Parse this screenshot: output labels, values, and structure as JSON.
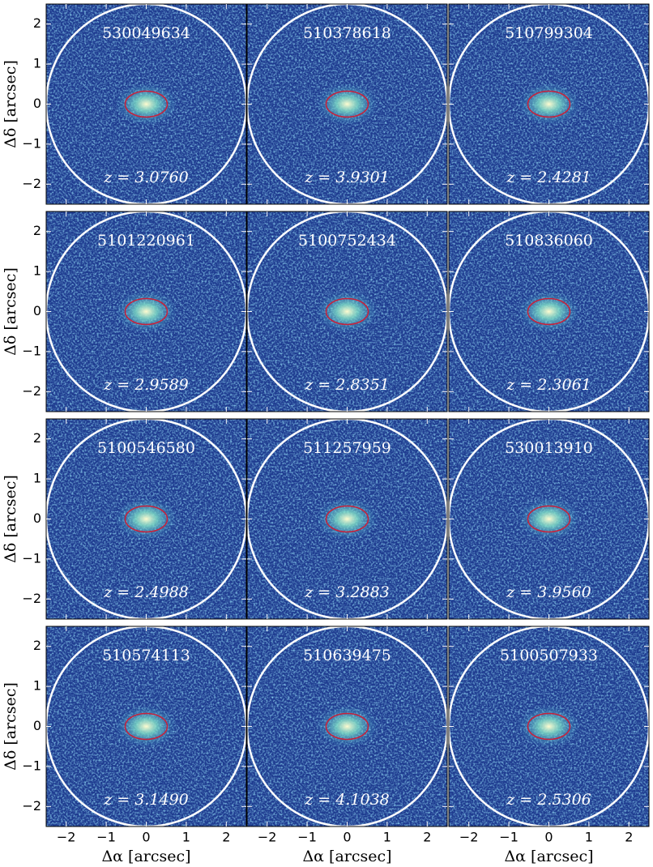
{
  "chart_data": {
    "type": "image",
    "xlabel": "Δα [arcsec]",
    "ylabel": "Δδ [arcsec]",
    "xlim": [
      -2.5,
      2.5
    ],
    "ylim": [
      -2.5,
      2.5
    ],
    "xticks": [
      {
        "value": -2,
        "label": "−2"
      },
      {
        "value": -1,
        "label": "−1"
      },
      0,
      1,
      2
    ],
    "yticks": [
      {
        "value": -2,
        "label": "−2"
      },
      {
        "value": -1,
        "label": "−1"
      },
      0,
      1,
      2
    ],
    "panels": [
      {
        "id": "530049634",
        "redshift": "z = 3.0760"
      },
      {
        "id": "510378618",
        "redshift": "z = 3.9301"
      },
      {
        "id": "510799304",
        "redshift": "z = 2.4281"
      },
      {
        "id": "5101220961",
        "redshift": "z = 2.9589"
      },
      {
        "id": "5100752434",
        "redshift": "z = 2.8351"
      },
      {
        "id": "510836060",
        "redshift": "z = 2.3061"
      },
      {
        "id": "5100546580",
        "redshift": "z = 2.4988"
      },
      {
        "id": "511257959",
        "redshift": "z = 3.2883"
      },
      {
        "id": "530013910",
        "redshift": "z = 3.9560"
      },
      {
        "id": "510574113",
        "redshift": "z = 3.1490"
      },
      {
        "id": "510639475",
        "redshift": "z = 4.1038"
      },
      {
        "id": "5100507933",
        "redshift": "z = 2.5306"
      }
    ]
  }
}
